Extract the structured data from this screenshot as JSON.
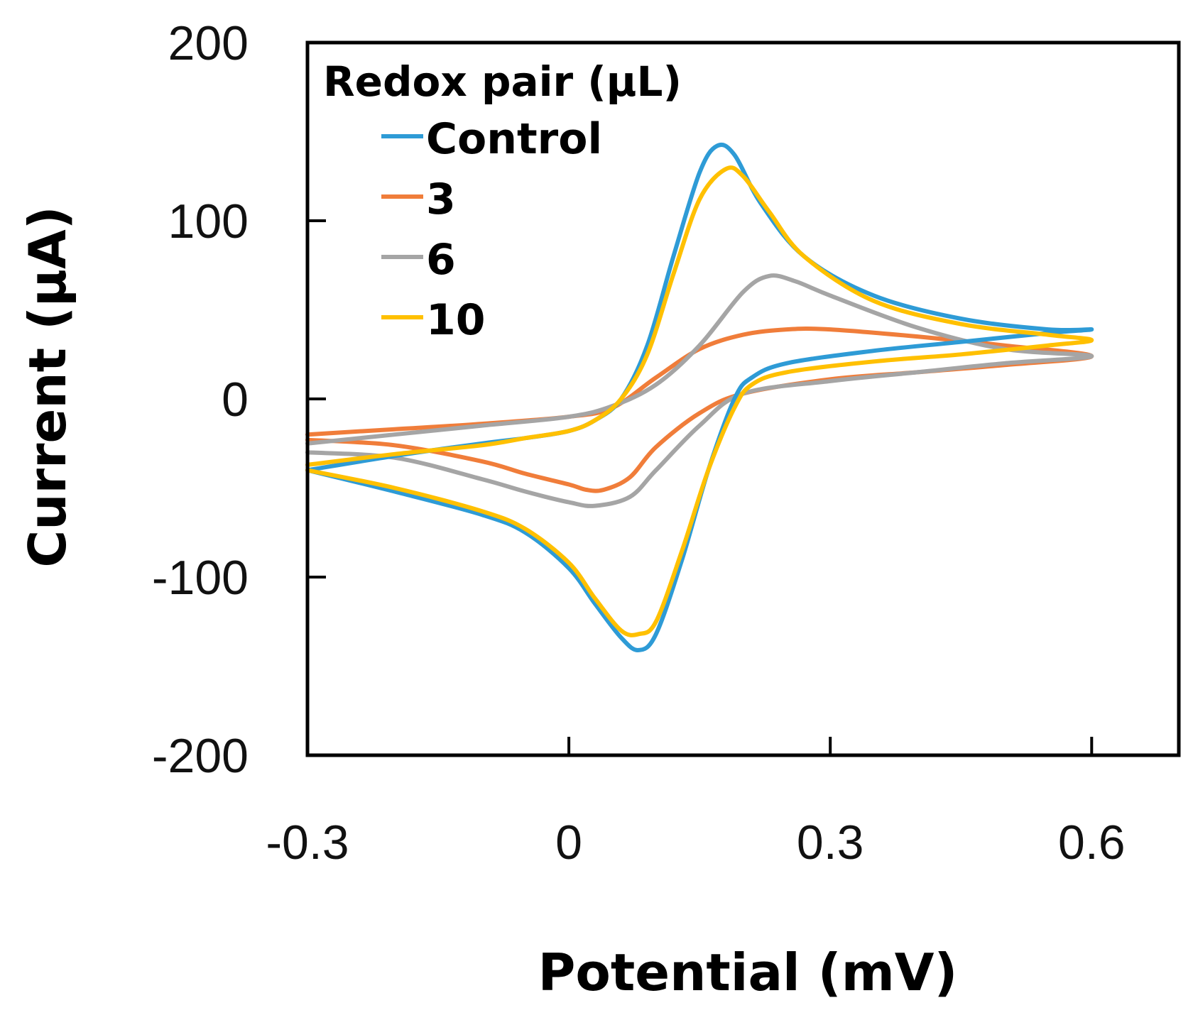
{
  "chart_data": {
    "type": "line",
    "title": "",
    "xlabel": "Potential (mV)",
    "ylabel": "Current (μA)",
    "xlim": [
      -0.3,
      0.7
    ],
    "ylim": [
      -200,
      200
    ],
    "xticks": [
      -0.3,
      0,
      0.3,
      0.6
    ],
    "xtick_labels": [
      "-0.3",
      "0",
      "0.3",
      "0.6"
    ],
    "yticks": [
      -200,
      -100,
      0,
      100,
      200
    ],
    "ytick_labels": [
      "-200",
      "-100",
      "0",
      "100",
      "200"
    ],
    "grid": false,
    "legend": {
      "title": "Redox pair (μL)",
      "position": "top-left"
    },
    "series": [
      {
        "name": "Control",
        "color": "#2E9BD6",
        "x": [
          -0.3,
          -0.2,
          -0.1,
          -0.05,
          0,
          0.03,
          0.06,
          0.09,
          0.12,
          0.15,
          0.17,
          0.19,
          0.22,
          0.27,
          0.35,
          0.45,
          0.55,
          0.6,
          0.55,
          0.45,
          0.35,
          0.25,
          0.21,
          0.19,
          0.16,
          0.13,
          0.1,
          0.08,
          0.06,
          0.03,
          0,
          -0.05,
          -0.1,
          -0.2,
          -0.3
        ],
        "y": [
          -40,
          -32,
          -25,
          -22,
          -18,
          -12,
          0,
          30,
          80,
          127,
          142,
          137,
          110,
          80,
          58,
          45,
          39,
          39,
          37,
          32,
          27,
          20,
          12,
          0,
          -40,
          -90,
          -132,
          -141,
          -134,
          -115,
          -95,
          -75,
          -65,
          -52,
          -40
        ]
      },
      {
        "name": "3",
        "color": "#F07D3A",
        "x": [
          -0.3,
          -0.2,
          -0.1,
          0,
          0.05,
          0.1,
          0.15,
          0.2,
          0.25,
          0.3,
          0.4,
          0.5,
          0.6,
          0.5,
          0.4,
          0.3,
          0.2,
          0.15,
          0.1,
          0.07,
          0.04,
          0.02,
          0,
          -0.05,
          -0.1,
          -0.2,
          -0.3
        ],
        "y": [
          -20,
          -17,
          -14,
          -10,
          -5,
          12,
          28,
          36,
          39,
          39,
          35,
          30,
          24,
          19,
          15,
          11,
          3,
          -8,
          -27,
          -44,
          -51,
          -51,
          -48,
          -42,
          -35,
          -26,
          -23
        ]
      },
      {
        "name": "6",
        "color": "#A5A5A5",
        "x": [
          -0.3,
          -0.2,
          -0.1,
          0,
          0.05,
          0.1,
          0.15,
          0.2,
          0.23,
          0.26,
          0.3,
          0.4,
          0.5,
          0.6,
          0.5,
          0.4,
          0.3,
          0.2,
          0.15,
          0.1,
          0.07,
          0.03,
          0,
          -0.05,
          -0.1,
          -0.2,
          -0.3
        ],
        "y": [
          -25,
          -20,
          -15,
          -10,
          -4,
          8,
          30,
          60,
          69,
          66,
          58,
          40,
          28,
          24,
          20,
          15,
          10,
          3,
          -15,
          -40,
          -55,
          -60,
          -58,
          -52,
          -45,
          -33,
          -30
        ]
      },
      {
        "name": "10",
        "color": "#FFC000",
        "x": [
          -0.3,
          -0.2,
          -0.1,
          -0.05,
          0,
          0.03,
          0.06,
          0.09,
          0.12,
          0.15,
          0.18,
          0.2,
          0.23,
          0.27,
          0.35,
          0.45,
          0.55,
          0.6,
          0.55,
          0.45,
          0.35,
          0.25,
          0.21,
          0.19,
          0.16,
          0.13,
          0.1,
          0.08,
          0.06,
          0.03,
          0,
          -0.05,
          -0.1,
          -0.2,
          -0.3
        ],
        "y": [
          -37,
          -31,
          -26,
          -22,
          -18,
          -12,
          0,
          25,
          70,
          112,
          129,
          125,
          105,
          80,
          55,
          42,
          36,
          33,
          30,
          25,
          21,
          15,
          8,
          -5,
          -40,
          -85,
          -125,
          -132,
          -130,
          -112,
          -92,
          -73,
          -63,
          -50,
          -40
        ]
      }
    ]
  }
}
